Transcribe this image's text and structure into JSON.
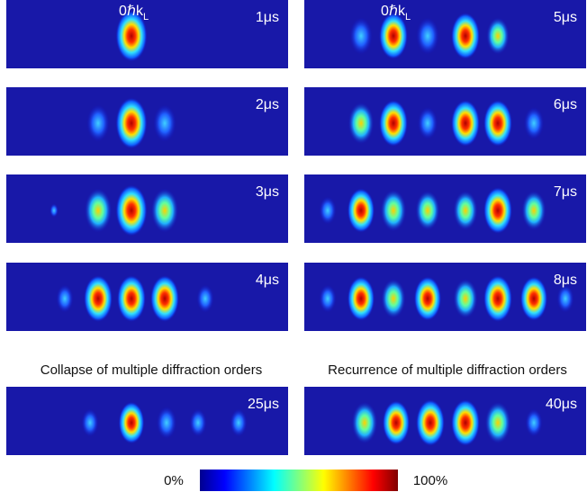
{
  "header": {
    "left_label": {
      "main": "0ℏk",
      "sub": "L"
    },
    "right_label": {
      "main": "0ℏk",
      "sub": "L"
    }
  },
  "panels": [
    {
      "time": "1μs"
    },
    {
      "time": "2μs"
    },
    {
      "time": "3μs"
    },
    {
      "time": "4μs"
    },
    {
      "time": "5μs"
    },
    {
      "time": "6μs"
    },
    {
      "time": "7μs"
    },
    {
      "time": "8μs"
    },
    {
      "time": "25μs"
    },
    {
      "time": "40μs"
    }
  ],
  "captions": [
    "Collapse of multiple diffraction orders",
    "Recurrence of multiple diffraction orders"
  ],
  "colorbar": {
    "min": "0%",
    "max": "100%"
  }
}
